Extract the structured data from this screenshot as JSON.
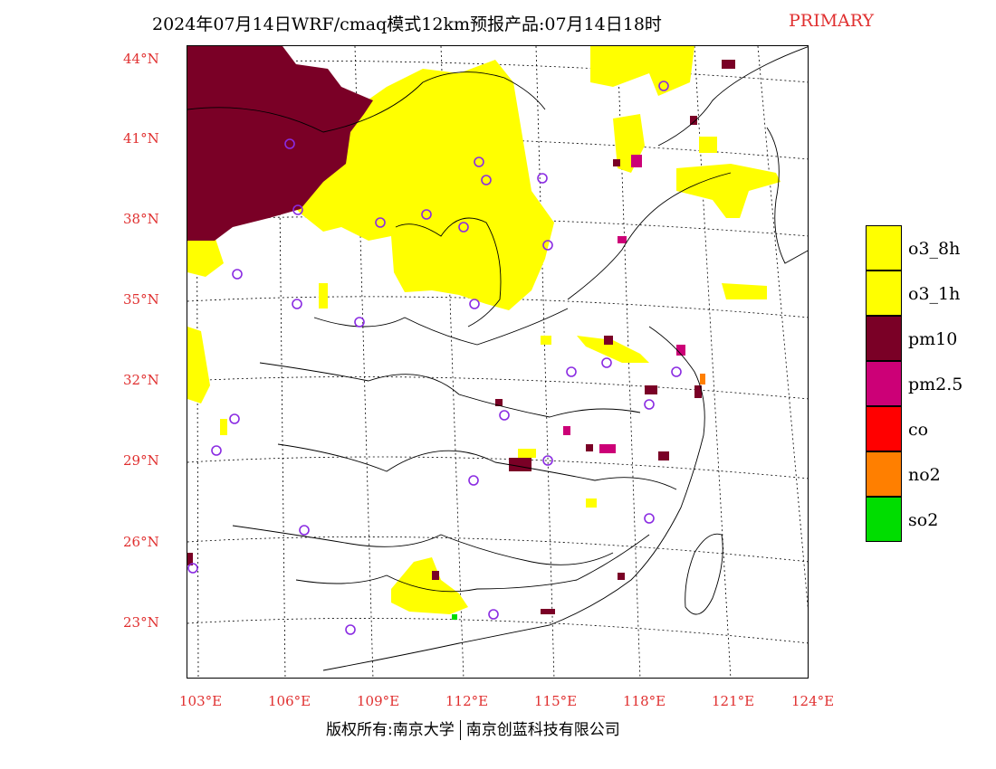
{
  "title": {
    "main": "2024年07月14日WRF/cmaq模式12km预报产品:07月14日18时",
    "tag": "PRIMARY"
  },
  "axes": {
    "lat_labels": [
      "44°N",
      "41°N",
      "38°N",
      "35°N",
      "32°N",
      "29°N",
      "26°N",
      "23°N"
    ],
    "lon_labels": [
      "103°E",
      "106°E",
      "109°E",
      "112°E",
      "115°E",
      "118°E",
      "121°E",
      "124°E"
    ]
  },
  "legend": [
    {
      "label": "o3_8h",
      "color": "#ffff00"
    },
    {
      "label": "o3_1h",
      "color": "#ffff00"
    },
    {
      "label": "pm10",
      "color": "#7a0026"
    },
    {
      "label": "pm2.5",
      "color": "#cc0077"
    },
    {
      "label": "co",
      "color": "#ff0000"
    },
    {
      "label": "no2",
      "color": "#ff7f00"
    },
    {
      "label": "so2",
      "color": "#00dd00"
    }
  ],
  "colors": {
    "o3": "#ffff00",
    "pm10": "#7a0026",
    "pm25": "#cc0077",
    "station": "#8a2be2",
    "axis_text": "#e03030"
  },
  "copyright": {
    "left": "版权所有:南京大学",
    "right": "南京创蓝科技有限公司"
  }
}
